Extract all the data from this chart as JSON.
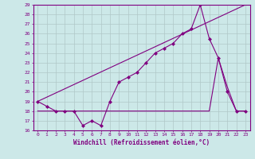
{
  "xlabel": "Windchill (Refroidissement éolien,°C)",
  "bg_color": "#cce8e8",
  "line_color": "#800080",
  "grid_color": "#b0c8c8",
  "ylim": [
    16,
    29
  ],
  "xlim": [
    -0.5,
    23.5
  ],
  "yticks": [
    16,
    17,
    18,
    19,
    20,
    21,
    22,
    23,
    24,
    25,
    26,
    27,
    28,
    29
  ],
  "xticks": [
    0,
    1,
    2,
    3,
    4,
    5,
    6,
    7,
    8,
    9,
    10,
    11,
    12,
    13,
    14,
    15,
    16,
    17,
    18,
    19,
    20,
    21,
    22,
    23
  ],
  "line1_x": [
    0,
    1,
    2,
    3,
    4,
    5,
    6,
    7,
    8,
    9,
    10,
    11,
    12,
    13,
    14,
    15,
    16,
    17,
    18,
    19,
    20,
    21,
    22,
    23
  ],
  "line1_y": [
    19,
    18.5,
    18,
    18,
    18,
    16.5,
    17,
    16.5,
    19,
    21,
    21.5,
    22,
    23,
    24,
    24.5,
    25,
    26,
    26.5,
    29,
    25.5,
    23.5,
    20,
    18,
    18
  ],
  "line2_x": [
    0,
    15,
    16,
    17,
    18,
    19,
    20,
    21,
    22,
    23
  ],
  "line2_y": [
    18,
    18,
    18,
    18,
    18,
    18,
    23.5,
    20.5,
    18,
    18
  ],
  "line3_x": [
    0,
    23
  ],
  "line3_y": [
    19,
    29
  ]
}
